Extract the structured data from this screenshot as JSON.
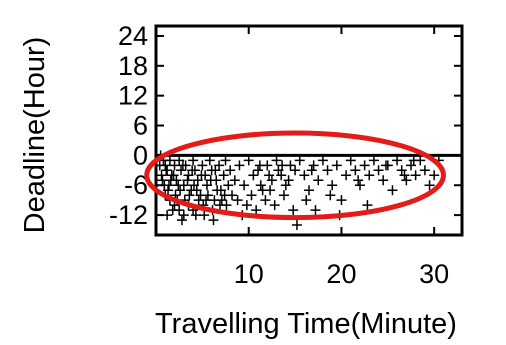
{
  "chart_data": {
    "type": "scatter",
    "title": "",
    "xlabel": "Travelling Time(Minute)",
    "ylabel": "Deadline(Hour)",
    "xlim": [
      0,
      33
    ],
    "ylim": [
      -16,
      26
    ],
    "x_ticks": [
      10,
      20,
      30
    ],
    "x_tick_labels": [
      "10",
      "20",
      "30"
    ],
    "y_ticks": [
      24,
      18,
      12,
      6,
      0,
      -6,
      -12
    ],
    "y_tick_labels": [
      "24",
      "18",
      "12",
      "6",
      "0",
      "-6",
      "-12"
    ],
    "grid": false,
    "legend": "none",
    "marker": "+",
    "marker_color": "#000000",
    "annotation": {
      "shape": "ellipse",
      "color": "#e31b1b",
      "center": [
        15,
        -4
      ],
      "rx": 16,
      "ry": 8.5
    },
    "points": [
      [
        0.5,
        0
      ],
      [
        0.8,
        -1
      ],
      [
        1.0,
        -2
      ],
      [
        1.2,
        -3
      ],
      [
        1.5,
        -1
      ],
      [
        1.7,
        -4
      ],
      [
        2.0,
        -2
      ],
      [
        2.2,
        -5
      ],
      [
        2.5,
        -1
      ],
      [
        2.7,
        -3
      ],
      [
        3.0,
        -6
      ],
      [
        3.2,
        -2
      ],
      [
        3.5,
        -4
      ],
      [
        3.8,
        -7
      ],
      [
        4.0,
        -1
      ],
      [
        4.2,
        -3
      ],
      [
        4.5,
        -5
      ],
      [
        4.8,
        -8
      ],
      [
        5.0,
        -2
      ],
      [
        5.3,
        -4
      ],
      [
        5.5,
        -6
      ],
      [
        5.8,
        -1
      ],
      [
        6.0,
        -3
      ],
      [
        6.3,
        -9
      ],
      [
        6.5,
        -5
      ],
      [
        6.8,
        -2
      ],
      [
        7.0,
        -7
      ],
      [
        7.3,
        -4
      ],
      [
        7.5,
        -1
      ],
      [
        7.8,
        -6
      ],
      [
        1.0,
        -8
      ],
      [
        1.5,
        -9
      ],
      [
        2.0,
        -10
      ],
      [
        2.5,
        -11
      ],
      [
        3.0,
        -12
      ],
      [
        3.5,
        -10
      ],
      [
        4.0,
        -11
      ],
      [
        1.2,
        -12
      ],
      [
        1.8,
        -11
      ],
      [
        2.3,
        -9
      ],
      [
        0.6,
        -4
      ],
      [
        0.9,
        -6
      ],
      [
        1.3,
        -7
      ],
      [
        1.6,
        -5
      ],
      [
        2.1,
        -8
      ],
      [
        2.6,
        -7
      ],
      [
        3.1,
        -9
      ],
      [
        3.6,
        -8
      ],
      [
        4.1,
        -6
      ],
      [
        4.6,
        -9
      ],
      [
        5.1,
        -10
      ],
      [
        5.6,
        -8
      ],
      [
        6.1,
        -11
      ],
      [
        6.6,
        -7
      ],
      [
        7.1,
        -9
      ],
      [
        7.6,
        -10
      ],
      [
        8.0,
        -3
      ],
      [
        8.5,
        -5
      ],
      [
        9.0,
        -2
      ],
      [
        9.5,
        -6
      ],
      [
        10.0,
        -1
      ],
      [
        10.5,
        -4
      ],
      [
        11.0,
        -3
      ],
      [
        11.5,
        -7
      ],
      [
        12.0,
        -2
      ],
      [
        12.5,
        -5
      ],
      [
        13.0,
        -1
      ],
      [
        13.5,
        -4
      ],
      [
        14.0,
        -6
      ],
      [
        14.5,
        -2
      ],
      [
        8.2,
        -8
      ],
      [
        8.8,
        -9
      ],
      [
        9.3,
        -12
      ],
      [
        9.8,
        -10
      ],
      [
        10.3,
        -8
      ],
      [
        10.8,
        -11
      ],
      [
        11.3,
        -6
      ],
      [
        11.8,
        -9
      ],
      [
        12.3,
        -7
      ],
      [
        12.8,
        -10
      ],
      [
        13.2,
        -3
      ],
      [
        13.8,
        -8
      ],
      [
        14.3,
        -5
      ],
      [
        14.8,
        -11
      ],
      [
        15.0,
        -3
      ],
      [
        15.5,
        -1
      ],
      [
        16.0,
        -4
      ],
      [
        16.5,
        -7
      ],
      [
        17.0,
        -2
      ],
      [
        17.5,
        -5
      ],
      [
        15.2,
        -14
      ],
      [
        16.2,
        -9
      ],
      [
        17.2,
        -11
      ],
      [
        18.0,
        -1
      ],
      [
        18.5,
        -3
      ],
      [
        19.0,
        -6
      ],
      [
        19.5,
        -2
      ],
      [
        20.0,
        -9
      ],
      [
        20.5,
        -4
      ],
      [
        21.0,
        -1
      ],
      [
        21.5,
        -3
      ],
      [
        22.0,
        -6
      ],
      [
        22.5,
        -2
      ],
      [
        23.0,
        -4
      ],
      [
        23.5,
        -1
      ],
      [
        24.0,
        -3
      ],
      [
        24.5,
        -5
      ],
      [
        25.0,
        -2
      ],
      [
        25.5,
        -7
      ],
      [
        26.0,
        -1
      ],
      [
        26.5,
        -3
      ],
      [
        27.0,
        -5
      ],
      [
        27.5,
        -2
      ],
      [
        28.0,
        -4
      ],
      [
        28.5,
        -1
      ],
      [
        29.0,
        -3
      ],
      [
        30.0,
        -4
      ],
      [
        30.5,
        -1
      ],
      [
        19.8,
        -12
      ],
      [
        22.8,
        -10
      ],
      [
        0.4,
        -2
      ],
      [
        0.7,
        -5
      ],
      [
        1.1,
        -3
      ],
      [
        1.4,
        -6
      ],
      [
        1.9,
        -4
      ],
      [
        2.4,
        -6
      ],
      [
        2.9,
        -2
      ],
      [
        3.4,
        -5
      ],
      [
        3.9,
        -3
      ],
      [
        4.4,
        -7
      ],
      [
        4.9,
        -4
      ],
      [
        5.4,
        -9
      ],
      [
        5.9,
        -5
      ],
      [
        6.4,
        -3
      ],
      [
        6.9,
        -10
      ],
      [
        7.4,
        -8
      ],
      [
        2.8,
        -13
      ],
      [
        4.3,
        -12
      ],
      [
        5.2,
        -12
      ],
      [
        6.2,
        -13
      ],
      [
        11.2,
        -2
      ],
      [
        12.2,
        -4
      ],
      [
        13.6,
        -2
      ],
      [
        16.8,
        -3
      ],
      [
        18.8,
        -8
      ],
      [
        21.8,
        -5
      ],
      [
        24.8,
        -2
      ],
      [
        27.8,
        -1
      ],
      [
        29.5,
        -6
      ],
      [
        26.8,
        -4
      ]
    ]
  }
}
